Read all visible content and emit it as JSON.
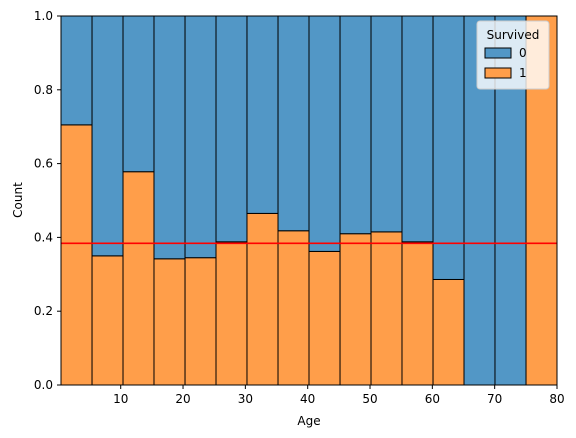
{
  "chart_data": {
    "type": "bar",
    "stacked": true,
    "normalized": true,
    "xlabel": "Age",
    "ylabel": "Count",
    "xlim": [
      0.42,
      80
    ],
    "ylim": [
      0,
      1
    ],
    "xticks": [
      10,
      20,
      30,
      40,
      50,
      60,
      70,
      80
    ],
    "yticks": [
      0.0,
      0.2,
      0.4,
      0.6,
      0.8,
      1.0
    ],
    "xtick_labels": [
      "10",
      "20",
      "30",
      "40",
      "50",
      "60",
      "70",
      "80"
    ],
    "ytick_labels": [
      "0.0",
      "0.2",
      "0.4",
      "0.6",
      "0.8",
      "1.0"
    ],
    "bin_edges": [
      0.42,
      5.4,
      10.37,
      15.34,
      20.32,
      25.29,
      30.26,
      35.24,
      40.21,
      45.19,
      50.16,
      55.13,
      60.11,
      65.08,
      70.05,
      75.03,
      80.0
    ],
    "series": [
      {
        "name": "1",
        "color": "#ff9e4a",
        "values": [
          0.705,
          0.35,
          0.578,
          0.342,
          0.345,
          0.388,
          0.465,
          0.418,
          0.362,
          0.41,
          0.415,
          0.388,
          0.286,
          0.0,
          0.0,
          1.0
        ]
      },
      {
        "name": "0",
        "color": "#5297c6",
        "values": [
          0.295,
          0.65,
          0.422,
          0.658,
          0.655,
          0.612,
          0.535,
          0.582,
          0.638,
          0.59,
          0.585,
          0.612,
          0.714,
          1.0,
          1.0,
          0.0
        ]
      }
    ],
    "reference_line": {
      "y": 0.384,
      "color": "#ff0000"
    },
    "legend": {
      "title": "Survived",
      "position": "top-right",
      "entries": [
        {
          "label": "0",
          "color": "#5297c6"
        },
        {
          "label": "1",
          "color": "#ff9e4a"
        }
      ]
    },
    "grid": false
  }
}
